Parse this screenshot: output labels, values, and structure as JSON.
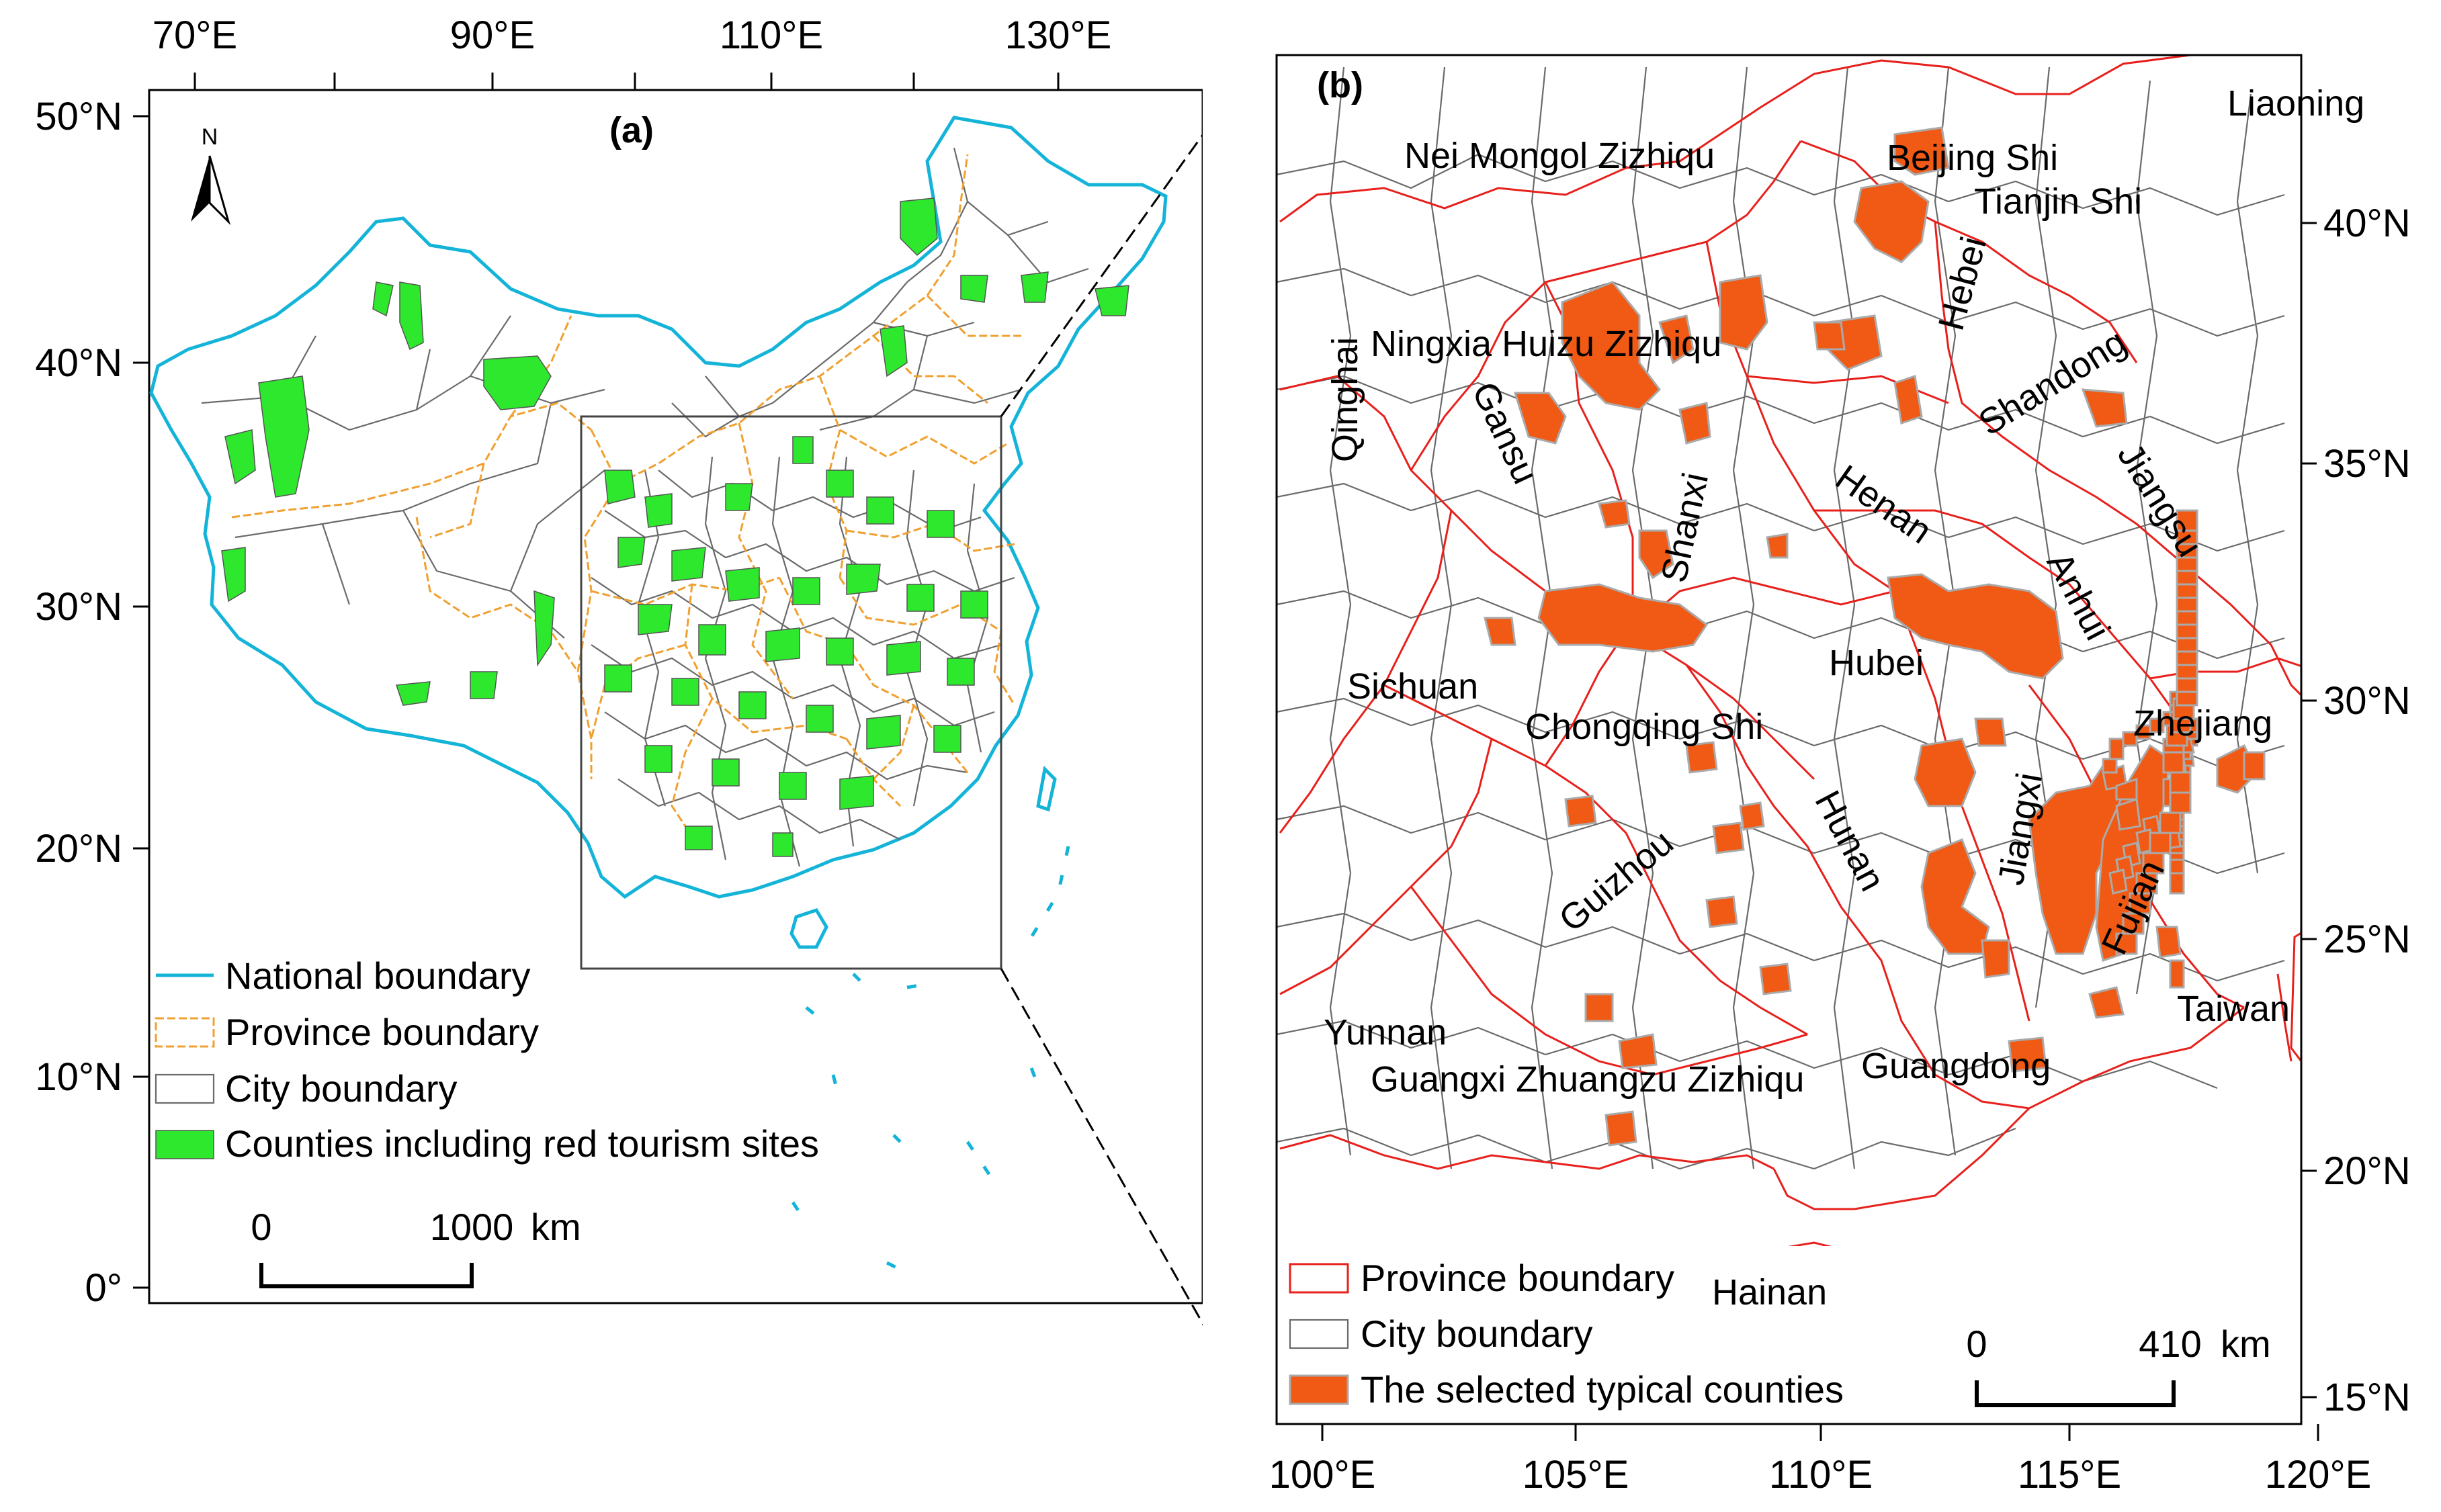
{
  "panel_a": {
    "label": "(a)",
    "north_arrow": "N",
    "lon_ticks": [
      "70°E",
      "90°E",
      "110°E",
      "130°E"
    ],
    "lat_ticks": [
      "50°N",
      "40°N",
      "30°N",
      "20°N",
      "10°N",
      "0°"
    ],
    "legend": {
      "national": "National boundary",
      "province": "Province boundary",
      "city": "City boundary",
      "counties": "Counties including red tourism sites"
    },
    "scale": {
      "start": "0",
      "end": "1000",
      "unit": "km"
    },
    "colors": {
      "national": "#14b4d8",
      "province": "#f0a030",
      "city": "#6a6a6a",
      "counties": "#2ee82e"
    }
  },
  "panel_b": {
    "label": "(b)",
    "lon_ticks": [
      "100°E",
      "105°E",
      "110°E",
      "115°E",
      "120°E"
    ],
    "lat_ticks": [
      "40°N",
      "35°N",
      "30°N",
      "25°N",
      "20°N",
      "15°N"
    ],
    "places": [
      "Liaoning",
      "Nei Mongol Zizhiqu",
      "Beijing Shi",
      "Tianjin Shi",
      "Hebei",
      "Ningxia Huizu Zizhiqu",
      "Qinghai",
      "Gansu",
      "Shanxi",
      "Shandong",
      "Henan",
      "Jiangsu",
      "Anhui",
      "Sichuan",
      "Hubei",
      "Chongqing Shi",
      "Zhejiang",
      "Hunan",
      "Jiangxi",
      "Guizhou",
      "Fujian",
      "Yunnan",
      "Taiwan",
      "Guangxi Zhuangzu Zizhiqu",
      "Guangdong",
      "Hainan"
    ],
    "legend": {
      "province": "Province boundary",
      "city": "City boundary",
      "selected": "The selected typical counties"
    },
    "scale": {
      "start": "0",
      "end": "410",
      "unit": "km"
    },
    "colors": {
      "province": "#e8201c",
      "city": "#6a6a6a",
      "selected": "#f05a14"
    }
  }
}
